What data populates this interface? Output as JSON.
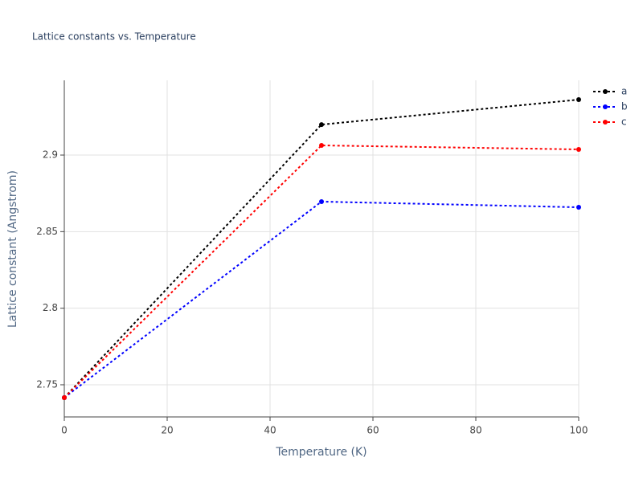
{
  "chart_data": {
    "type": "line",
    "title": "Lattice constants vs. Temperature",
    "x_label": "Temperature (K)",
    "y_label": "Lattice constant (Angstrom)",
    "x": [
      0,
      50,
      100
    ],
    "series": [
      {
        "name": "a",
        "color": "#000000",
        "values": [
          2.7416,
          2.9199,
          2.9362
        ]
      },
      {
        "name": "b",
        "color": "#0000ff",
        "values": [
          2.7416,
          2.8696,
          2.8659
        ]
      },
      {
        "name": "c",
        "color": "#ff0000",
        "values": [
          2.7416,
          2.9063,
          2.9037
        ]
      }
    ],
    "xlim": [
      0,
      100
    ],
    "xticks": [
      0,
      20,
      40,
      60,
      80,
      100
    ],
    "ylim": [
      2.729,
      2.9488
    ],
    "yticks": [
      2.75,
      2.8,
      2.85,
      2.9
    ],
    "grid": true,
    "line_style": "dotted",
    "legend": "right"
  }
}
